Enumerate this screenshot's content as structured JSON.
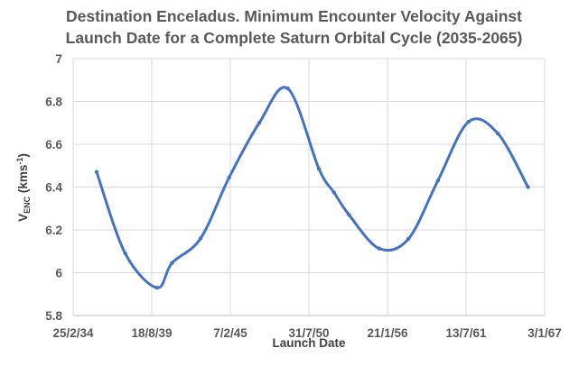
{
  "chart_data": {
    "type": "line",
    "title_lines": [
      "Destination Enceladus. Minimum Encounter Velocity Against",
      "Launch Date for a Complete Saturn Orbital Cycle (2035-2065)"
    ],
    "xlabel": "Launch Date",
    "ylabel": {
      "main": "V",
      "sub": "ENC",
      "unit": " (kms",
      "sup": "-1",
      "close": ")"
    },
    "x_ticks": [
      {
        "label": "25/2/34",
        "date": "2034-02-25"
      },
      {
        "label": "18/8/39",
        "date": "2039-08-18"
      },
      {
        "label": "7/2/45",
        "date": "2045-02-07"
      },
      {
        "label": "31/7/50",
        "date": "2050-07-31"
      },
      {
        "label": "21/1/56",
        "date": "2056-01-21"
      },
      {
        "label": "13/7/61",
        "date": "2061-07-13"
      },
      {
        "label": "3/1/67",
        "date": "2067-01-03"
      }
    ],
    "xlim": [
      "2034-02-25",
      "2067-01-03"
    ],
    "y_ticks": [
      "5.8",
      "6",
      "6.2",
      "6.4",
      "6.6",
      "6.8",
      "7"
    ],
    "ylim": [
      5.8,
      7
    ],
    "grid": true,
    "smooth": true,
    "line_color": "#4472C4",
    "series": [
      {
        "x": [
          "2035-10-16",
          "2037-10-12",
          "2039-12-26",
          "2041-01-13",
          "2043-01-12",
          "2045-01-08",
          "2047-02-15",
          "2049-02-11",
          "2051-04-13",
          "2052-04-29",
          "2053-05-18",
          "2055-06-23",
          "2057-07-07",
          "2059-07-27",
          "2061-09-16",
          "2063-10-01",
          "2065-11-05"
        ],
        "y": [
          6.47,
          6.09,
          5.93,
          6.045,
          6.16,
          6.445,
          6.7,
          6.86,
          6.485,
          6.375,
          6.27,
          6.113,
          6.158,
          6.43,
          6.705,
          6.65,
          6.4
        ]
      }
    ]
  }
}
